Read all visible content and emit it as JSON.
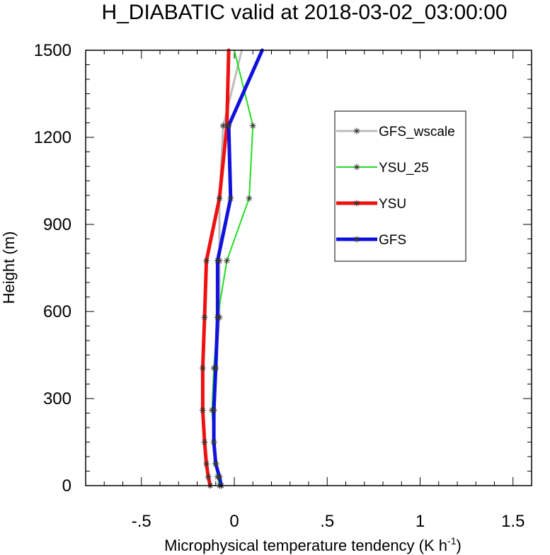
{
  "chart_data": {
    "type": "line",
    "title": "H_DIABATIC valid at 2018-03-02_03:00:00",
    "xlabel": "Microphysical temperature tendency (K h",
    "xlabel_sup": "-1",
    "xlabel_close": ")",
    "ylabel": "Height (m)",
    "xlim": [
      -0.8,
      1.6
    ],
    "ylim": [
      0,
      1500
    ],
    "xticks": [
      {
        "v": -0.5,
        "label": "-.5"
      },
      {
        "v": 0,
        "label": "0"
      },
      {
        "v": 0.5,
        "label": ".5"
      },
      {
        "v": 1,
        "label": "1"
      },
      {
        "v": 1.5,
        "label": "1.5"
      }
    ],
    "yticks": [
      {
        "v": 0,
        "label": "0"
      },
      {
        "v": 300,
        "label": "300"
      },
      {
        "v": 600,
        "label": "600"
      },
      {
        "v": 900,
        "label": "900"
      },
      {
        "v": 1200,
        "label": "1200"
      },
      {
        "v": 1500,
        "label": "1500"
      }
    ],
    "legend_position": "top-right",
    "marker_heights": [
      0,
      30,
      75,
      150,
      260,
      405,
      580,
      775,
      990,
      1240
    ],
    "series": [
      {
        "name": "GFS_wscale",
        "color": "#bdbdbd",
        "width": 3,
        "x": [
          -0.07,
          -0.08,
          -0.1,
          -0.11,
          -0.11,
          -0.1,
          -0.08,
          -0.08,
          -0.08,
          -0.06,
          0.04
        ],
        "y": [
          0,
          30,
          75,
          150,
          260,
          405,
          580,
          775,
          990,
          1240,
          1500
        ]
      },
      {
        "name": "YSU_25",
        "color": "#22dd22",
        "width": 2,
        "x": [
          -0.08,
          -0.09,
          -0.1,
          -0.11,
          -0.12,
          -0.11,
          -0.09,
          -0.04,
          0.08,
          0.1,
          0.0
        ],
        "y": [
          0,
          30,
          75,
          150,
          260,
          405,
          580,
          775,
          990,
          1240,
          1500
        ]
      },
      {
        "name": "YSU",
        "color": "#ee1111",
        "width": 5,
        "x": [
          -0.13,
          -0.14,
          -0.15,
          -0.16,
          -0.17,
          -0.17,
          -0.16,
          -0.15,
          -0.08,
          -0.04,
          -0.03
        ],
        "y": [
          0,
          30,
          75,
          150,
          260,
          405,
          580,
          775,
          990,
          1240,
          1500
        ]
      },
      {
        "name": "GFS",
        "color": "#1111dd",
        "width": 5,
        "x": [
          -0.07,
          -0.08,
          -0.1,
          -0.11,
          -0.11,
          -0.1,
          -0.09,
          -0.09,
          -0.02,
          -0.03,
          0.15
        ],
        "y": [
          0,
          30,
          75,
          150,
          260,
          405,
          580,
          775,
          990,
          1240,
          1500
        ]
      }
    ]
  }
}
